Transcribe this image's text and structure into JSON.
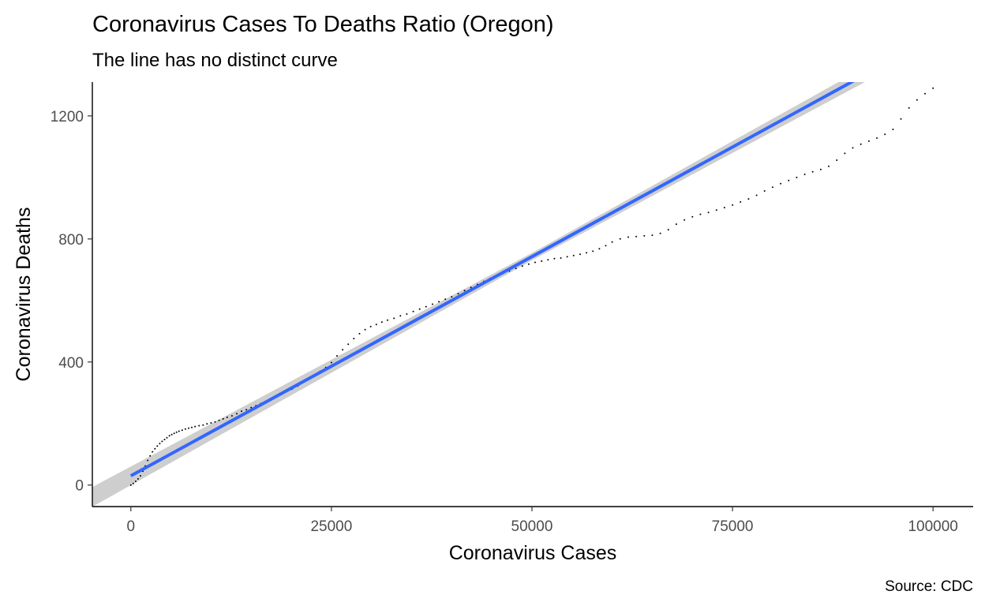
{
  "chart_data": {
    "type": "scatter",
    "title": "Coronavirus Cases To Deaths Ratio (Oregon)",
    "subtitle": "The line has no distinct curve",
    "xlabel": "Coronavirus Cases",
    "ylabel": "Coronavirus Deaths",
    "caption": "Source: CDC",
    "xlim": [
      -4800,
      105000
    ],
    "ylim": [
      -70,
      1310
    ],
    "x_ticks": [
      0,
      25000,
      50000,
      75000,
      100000
    ],
    "x_tick_labels": [
      "0",
      "25000",
      "50000",
      "75000",
      "100000"
    ],
    "y_ticks": [
      0,
      400,
      800,
      1200
    ],
    "y_tick_labels": [
      "0",
      "400",
      "800",
      "1200"
    ],
    "grid": false,
    "legend": "none",
    "colors": {
      "points": "#000000",
      "fit_line": "#3366ff",
      "confidence_band": "#bebebe"
    },
    "trend": {
      "method": "linear",
      "intercept": 30,
      "slope": 0.01425,
      "band_halfwidth": 20
    },
    "points": [
      [
        0,
        0
      ],
      [
        300,
        5
      ],
      [
        600,
        12
      ],
      [
        900,
        20
      ],
      [
        1200,
        30
      ],
      [
        1500,
        45
      ],
      [
        1800,
        62
      ],
      [
        2100,
        80
      ],
      [
        2400,
        95
      ],
      [
        2700,
        108
      ],
      [
        3000,
        118
      ],
      [
        3300,
        127
      ],
      [
        3600,
        135
      ],
      [
        3900,
        142
      ],
      [
        4200,
        148
      ],
      [
        4500,
        154
      ],
      [
        4800,
        160
      ],
      [
        5100,
        164
      ],
      [
        5400,
        168
      ],
      [
        5700,
        172
      ],
      [
        6000,
        175
      ],
      [
        6400,
        178
      ],
      [
        6800,
        182
      ],
      [
        7200,
        185
      ],
      [
        7600,
        187
      ],
      [
        8000,
        190
      ],
      [
        8500,
        193
      ],
      [
        9000,
        195
      ],
      [
        9500,
        199
      ],
      [
        10000,
        202
      ],
      [
        10500,
        205
      ],
      [
        11000,
        210
      ],
      [
        11500,
        215
      ],
      [
        12000,
        220
      ],
      [
        12600,
        225
      ],
      [
        13200,
        232
      ],
      [
        13800,
        240
      ],
      [
        14400,
        245
      ],
      [
        15000,
        252
      ],
      [
        15600,
        258
      ],
      [
        16200,
        265
      ],
      [
        16800,
        272
      ],
      [
        17400,
        280
      ],
      [
        18000,
        288
      ],
      [
        18700,
        296
      ],
      [
        19400,
        304
      ],
      [
        20100,
        312
      ],
      [
        20800,
        322
      ],
      [
        21500,
        334
      ],
      [
        22200,
        346
      ],
      [
        22900,
        358
      ],
      [
        23600,
        370
      ],
      [
        24300,
        382
      ],
      [
        25000,
        398
      ],
      [
        25700,
        420
      ],
      [
        26400,
        440
      ],
      [
        27100,
        458
      ],
      [
        27800,
        476
      ],
      [
        28500,
        492
      ],
      [
        29200,
        505
      ],
      [
        29900,
        515
      ],
      [
        30600,
        522
      ],
      [
        31300,
        530
      ],
      [
        32000,
        536
      ],
      [
        32800,
        542
      ],
      [
        33600,
        550
      ],
      [
        34400,
        556
      ],
      [
        35200,
        564
      ],
      [
        36000,
        572
      ],
      [
        36800,
        580
      ],
      [
        37600,
        588
      ],
      [
        38400,
        596
      ],
      [
        39200,
        604
      ],
      [
        40000,
        612
      ],
      [
        40800,
        622
      ],
      [
        41600,
        632
      ],
      [
        42400,
        642
      ],
      [
        43200,
        652
      ],
      [
        44000,
        662
      ],
      [
        44800,
        672
      ],
      [
        45600,
        680
      ],
      [
        46400,
        688
      ],
      [
        47200,
        696
      ],
      [
        48000,
        704
      ],
      [
        48800,
        712
      ],
      [
        49600,
        718
      ],
      [
        50400,
        724
      ],
      [
        51200,
        728
      ],
      [
        52000,
        732
      ],
      [
        52800,
        736
      ],
      [
        53600,
        738
      ],
      [
        54400,
        742
      ],
      [
        55200,
        746
      ],
      [
        56000,
        750
      ],
      [
        56800,
        755
      ],
      [
        57600,
        760
      ],
      [
        58400,
        768
      ],
      [
        59200,
        778
      ],
      [
        60000,
        790
      ],
      [
        61000,
        800
      ],
      [
        62000,
        806
      ],
      [
        63000,
        808
      ],
      [
        64000,
        810
      ],
      [
        65000,
        812
      ],
      [
        66000,
        818
      ],
      [
        67000,
        830
      ],
      [
        68000,
        848
      ],
      [
        69000,
        862
      ],
      [
        70000,
        872
      ],
      [
        71000,
        880
      ],
      [
        72000,
        886
      ],
      [
        73000,
        894
      ],
      [
        74000,
        902
      ],
      [
        75000,
        910
      ],
      [
        76000,
        920
      ],
      [
        77000,
        930
      ],
      [
        78000,
        942
      ],
      [
        79000,
        956
      ],
      [
        80000,
        968
      ],
      [
        81000,
        980
      ],
      [
        82000,
        990
      ],
      [
        83000,
        1000
      ],
      [
        84000,
        1010
      ],
      [
        85000,
        1018
      ],
      [
        86000,
        1026
      ],
      [
        87000,
        1036
      ],
      [
        88000,
        1056
      ],
      [
        89000,
        1078
      ],
      [
        90000,
        1096
      ],
      [
        91000,
        1108
      ],
      [
        92000,
        1118
      ],
      [
        93000,
        1128
      ],
      [
        94000,
        1140
      ],
      [
        95000,
        1156
      ],
      [
        96000,
        1190
      ],
      [
        97000,
        1226
      ],
      [
        98000,
        1252
      ],
      [
        99000,
        1272
      ],
      [
        100000,
        1290
      ]
    ]
  }
}
